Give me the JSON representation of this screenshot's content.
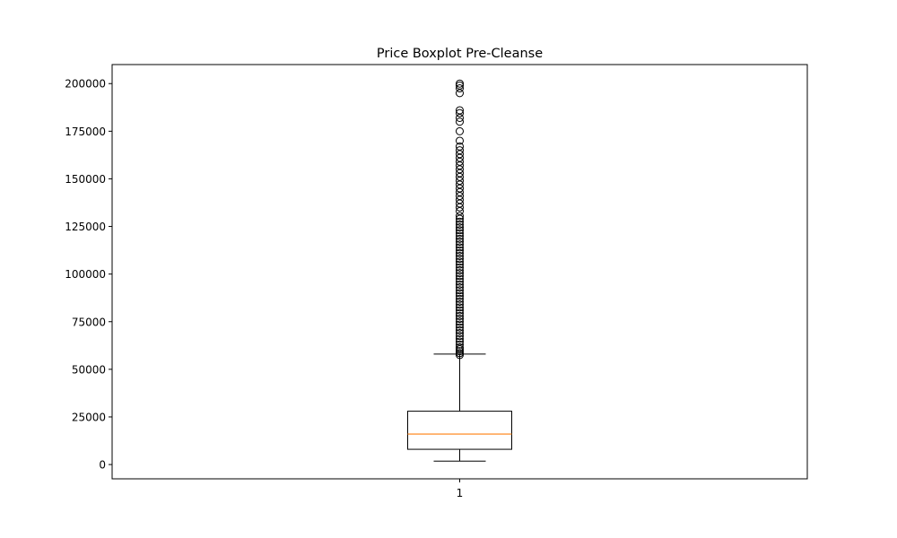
{
  "chart_data": {
    "type": "boxplot",
    "title": "Price Boxplot Pre-Cleanse",
    "xlabel": "",
    "ylabel": "",
    "ylim": [
      -7500,
      210000
    ],
    "yticks": [
      0,
      25000,
      50000,
      75000,
      100000,
      125000,
      150000,
      175000,
      200000
    ],
    "yticklabels": [
      "0",
      "25000",
      "50000",
      "75000",
      "100000",
      "125000",
      "150000",
      "175000",
      "200000"
    ],
    "categories": [
      "1"
    ],
    "grid": false,
    "colors": {
      "box": "#000000",
      "median": "#ff7f0e",
      "flier": "#000000"
    },
    "boxes": [
      {
        "label": "1",
        "whisker_low": 1800,
        "q1": 8000,
        "median": 16000,
        "q3": 28000,
        "whisker_high": 58000,
        "fliers": [
          57500,
          58500,
          59500,
          60500,
          61500,
          63000,
          64500,
          66000,
          67500,
          69000,
          70500,
          72000,
          73500,
          75000,
          76500,
          78000,
          79500,
          81000,
          82500,
          84000,
          85500,
          87000,
          88500,
          90000,
          91500,
          93000,
          94500,
          96000,
          97500,
          99000,
          100500,
          102000,
          103500,
          105000,
          106500,
          108000,
          109500,
          111000,
          112500,
          114000,
          115500,
          117000,
          118500,
          120000,
          121500,
          123000,
          124500,
          126000,
          127500,
          129000,
          130500,
          133000,
          135000,
          137000,
          139000,
          141000,
          143000,
          145000,
          147000,
          149000,
          151000,
          153000,
          155000,
          157000,
          159000,
          161000,
          163000,
          165000,
          167000,
          170000,
          175000,
          180000,
          182000,
          184500,
          186000,
          195000,
          197500,
          199000,
          200000
        ]
      }
    ]
  }
}
